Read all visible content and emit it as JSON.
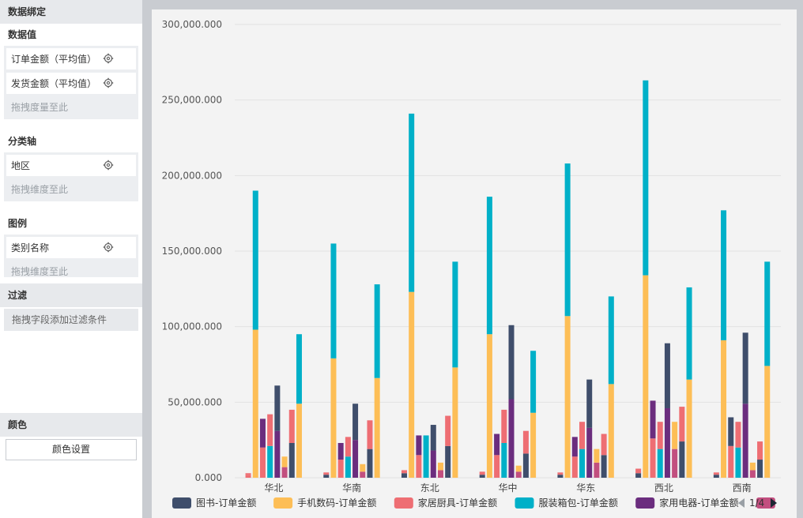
{
  "panel": {
    "binding_title": "数据绑定",
    "values_title": "数据值",
    "values": [
      "订单金额（平均值）",
      "发货金额（平均值）"
    ],
    "values_hint": "拖拽度量至此",
    "category_title": "分类轴",
    "category": [
      "地区"
    ],
    "category_hint": "拖拽维度至此",
    "legend_title": "图例",
    "legend_field": [
      "类别名称"
    ],
    "legend_hint": "拖拽维度至此",
    "filter_title": "过滤",
    "filter_hint": "拖拽字段添加过滤条件",
    "color_title": "颜色",
    "color_button": "颜色设置"
  },
  "chart_data": {
    "type": "bar",
    "stacked_pairs": true,
    "categories": [
      "华北",
      "华南",
      "东北",
      "华中",
      "华东",
      "西北",
      "西南"
    ],
    "ylim": [
      0,
      300000
    ],
    "yticks": [
      "0.000",
      "50,000.000",
      "100,000.000",
      "150,000.000",
      "200,000.000",
      "250,000.000",
      "300,000.000"
    ],
    "bars": [
      [
        {
          "segments": [
            [
              0,
              2000,
              "#ee6e73"
            ],
            [
              2000,
              1000,
              "#ee6e73"
            ]
          ]
        },
        {
          "segments": [
            [
              0,
              98000,
              "#fdbe56"
            ],
            [
              98000,
              92000,
              "#00b0c8"
            ]
          ]
        },
        {
          "segments": [
            [
              0,
              20000,
              "#ee6e73"
            ],
            [
              20000,
              19000,
              "#6b2d7e"
            ]
          ]
        },
        {
          "segments": [
            [
              0,
              21000,
              "#00b0c8"
            ],
            [
              21000,
              21000,
              "#ee6e73"
            ]
          ]
        },
        {
          "segments": [
            [
              0,
              31000,
              "#6b2d7e"
            ],
            [
              31000,
              30000,
              "#3f4e6b"
            ]
          ]
        },
        {
          "segments": [
            [
              0,
              7000,
              "#c24f7f"
            ],
            [
              7000,
              7000,
              "#fdbe56"
            ]
          ]
        },
        {
          "segments": [
            [
              0,
              23000,
              "#3f4e6b"
            ],
            [
              23000,
              22000,
              "#ee6e73"
            ]
          ]
        },
        {
          "segments": [
            [
              0,
              49000,
              "#fdbe56"
            ],
            [
              49000,
              46000,
              "#00b0c8"
            ]
          ]
        }
      ],
      [
        {
          "segments": [
            [
              0,
              2000,
              "#3f4e6b"
            ],
            [
              2000,
              1500,
              "#ee6e73"
            ]
          ]
        },
        {
          "segments": [
            [
              0,
              79000,
              "#fdbe56"
            ],
            [
              79000,
              76000,
              "#00b0c8"
            ]
          ]
        },
        {
          "segments": [
            [
              0,
              12000,
              "#ee6e73"
            ],
            [
              12000,
              11000,
              "#6b2d7e"
            ]
          ]
        },
        {
          "segments": [
            [
              0,
              14000,
              "#00b0c8"
            ],
            [
              14000,
              13000,
              "#ee6e73"
            ]
          ]
        },
        {
          "segments": [
            [
              0,
              25000,
              "#6b2d7e"
            ],
            [
              25000,
              24000,
              "#3f4e6b"
            ]
          ]
        },
        {
          "segments": [
            [
              0,
              4000,
              "#c24f7f"
            ],
            [
              4000,
              5000,
              "#fdbe56"
            ]
          ]
        },
        {
          "segments": [
            [
              0,
              19000,
              "#3f4e6b"
            ],
            [
              19000,
              19000,
              "#ee6e73"
            ]
          ]
        },
        {
          "segments": [
            [
              0,
              66000,
              "#fdbe56"
            ],
            [
              66000,
              62000,
              "#00b0c8"
            ]
          ]
        }
      ],
      [
        {
          "segments": [
            [
              0,
              3000,
              "#3f4e6b"
            ],
            [
              3000,
              2000,
              "#ee6e73"
            ]
          ]
        },
        {
          "segments": [
            [
              0,
              123000,
              "#fdbe56"
            ],
            [
              123000,
              118000,
              "#00b0c8"
            ]
          ]
        },
        {
          "segments": [
            [
              0,
              15000,
              "#ee6e73"
            ],
            [
              15000,
              13000,
              "#6b2d7e"
            ]
          ]
        },
        {
          "segments": [
            [
              0,
              28000,
              "#00b0c8"
            ],
            [
              28000,
              0,
              "#ee6e73"
            ]
          ]
        },
        {
          "segments": [
            [
              0,
              18000,
              "#6b2d7e"
            ],
            [
              18000,
              17000,
              "#3f4e6b"
            ]
          ]
        },
        {
          "segments": [
            [
              0,
              5000,
              "#c24f7f"
            ],
            [
              5000,
              5000,
              "#fdbe56"
            ]
          ]
        },
        {
          "segments": [
            [
              0,
              21000,
              "#3f4e6b"
            ],
            [
              21000,
              20000,
              "#ee6e73"
            ]
          ]
        },
        {
          "segments": [
            [
              0,
              73000,
              "#fdbe56"
            ],
            [
              73000,
              70000,
              "#00b0c8"
            ]
          ]
        }
      ],
      [
        {
          "segments": [
            [
              0,
              2000,
              "#3f4e6b"
            ],
            [
              2000,
              2000,
              "#ee6e73"
            ]
          ]
        },
        {
          "segments": [
            [
              0,
              95000,
              "#fdbe56"
            ],
            [
              95000,
              91000,
              "#00b0c8"
            ]
          ]
        },
        {
          "segments": [
            [
              0,
              15000,
              "#ee6e73"
            ],
            [
              15000,
              14000,
              "#6b2d7e"
            ]
          ]
        },
        {
          "segments": [
            [
              0,
              23000,
              "#00b0c8"
            ],
            [
              23000,
              22000,
              "#ee6e73"
            ]
          ]
        },
        {
          "segments": [
            [
              0,
              52000,
              "#6b2d7e"
            ],
            [
              52000,
              49000,
              "#3f4e6b"
            ]
          ]
        },
        {
          "segments": [
            [
              0,
              4000,
              "#c24f7f"
            ],
            [
              4000,
              4000,
              "#fdbe56"
            ]
          ]
        },
        {
          "segments": [
            [
              0,
              16000,
              "#3f4e6b"
            ],
            [
              16000,
              15000,
              "#ee6e73"
            ]
          ]
        },
        {
          "segments": [
            [
              0,
              43000,
              "#fdbe56"
            ],
            [
              43000,
              41000,
              "#00b0c8"
            ]
          ]
        }
      ],
      [
        {
          "segments": [
            [
              0,
              2000,
              "#3f4e6b"
            ],
            [
              2000,
              1500,
              "#ee6e73"
            ]
          ]
        },
        {
          "segments": [
            [
              0,
              107000,
              "#fdbe56"
            ],
            [
              107000,
              101000,
              "#00b0c8"
            ]
          ]
        },
        {
          "segments": [
            [
              0,
              14000,
              "#ee6e73"
            ],
            [
              14000,
              13000,
              "#6b2d7e"
            ]
          ]
        },
        {
          "segments": [
            [
              0,
              19000,
              "#00b0c8"
            ],
            [
              19000,
              18000,
              "#ee6e73"
            ]
          ]
        },
        {
          "segments": [
            [
              0,
              33000,
              "#6b2d7e"
            ],
            [
              33000,
              32000,
              "#3f4e6b"
            ]
          ]
        },
        {
          "segments": [
            [
              0,
              10000,
              "#c24f7f"
            ],
            [
              10000,
              9000,
              "#fdbe56"
            ]
          ]
        },
        {
          "segments": [
            [
              0,
              15000,
              "#3f4e6b"
            ],
            [
              15000,
              14000,
              "#ee6e73"
            ]
          ]
        },
        {
          "segments": [
            [
              0,
              62000,
              "#fdbe56"
            ],
            [
              62000,
              58000,
              "#00b0c8"
            ]
          ]
        }
      ],
      [
        {
          "segments": [
            [
              0,
              3000,
              "#3f4e6b"
            ],
            [
              3000,
              3000,
              "#ee6e73"
            ]
          ]
        },
        {
          "segments": [
            [
              0,
              134000,
              "#fdbe56"
            ],
            [
              134000,
              129000,
              "#00b0c8"
            ]
          ]
        },
        {
          "segments": [
            [
              0,
              26000,
              "#ee6e73"
            ],
            [
              26000,
              25000,
              "#6b2d7e"
            ]
          ]
        },
        {
          "segments": [
            [
              0,
              19000,
              "#00b0c8"
            ],
            [
              19000,
              18000,
              "#ee6e73"
            ]
          ]
        },
        {
          "segments": [
            [
              0,
              46000,
              "#6b2d7e"
            ],
            [
              46000,
              43000,
              "#3f4e6b"
            ]
          ]
        },
        {
          "segments": [
            [
              0,
              19000,
              "#c24f7f"
            ],
            [
              19000,
              18000,
              "#fdbe56"
            ]
          ]
        },
        {
          "segments": [
            [
              0,
              24000,
              "#3f4e6b"
            ],
            [
              24000,
              23000,
              "#ee6e73"
            ]
          ]
        },
        {
          "segments": [
            [
              0,
              65000,
              "#fdbe56"
            ],
            [
              65000,
              61000,
              "#00b0c8"
            ]
          ]
        }
      ],
      [
        {
          "segments": [
            [
              0,
              2000,
              "#3f4e6b"
            ],
            [
              2000,
              1500,
              "#ee6e73"
            ]
          ]
        },
        {
          "segments": [
            [
              0,
              91000,
              "#fdbe56"
            ],
            [
              91000,
              86000,
              "#00b0c8"
            ]
          ]
        },
        {
          "segments": [
            [
              0,
              21000,
              "#ee6e73"
            ],
            [
              21000,
              19000,
              "#3f4e6b"
            ]
          ]
        },
        {
          "segments": [
            [
              0,
              20000,
              "#00b0c8"
            ],
            [
              20000,
              17000,
              "#ee6e73"
            ]
          ]
        },
        {
          "segments": [
            [
              0,
              49000,
              "#6b2d7e"
            ],
            [
              49000,
              47000,
              "#3f4e6b"
            ]
          ]
        },
        {
          "segments": [
            [
              0,
              5000,
              "#c24f7f"
            ],
            [
              5000,
              5000,
              "#fdbe56"
            ]
          ]
        },
        {
          "segments": [
            [
              0,
              12000,
              "#3f4e6b"
            ],
            [
              12000,
              12000,
              "#ee6e73"
            ]
          ]
        },
        {
          "segments": [
            [
              0,
              74000,
              "#fdbe56"
            ],
            [
              74000,
              69000,
              "#00b0c8"
            ]
          ]
        }
      ]
    ],
    "legend": [
      {
        "name": "图书-订单金额",
        "color": "#3f4e6b"
      },
      {
        "name": "手机数码-订单金额",
        "color": "#fdbe56"
      },
      {
        "name": "家居厨具-订单金额",
        "color": "#ee6e73"
      },
      {
        "name": "服装箱包-订单金额",
        "color": "#00b0c8"
      },
      {
        "name": "家用电器-订单金额",
        "color": "#6b2d7e"
      },
      {
        "name": "",
        "color": "#c24f7f"
      }
    ],
    "legend_page": "1/4",
    "grid": true
  }
}
